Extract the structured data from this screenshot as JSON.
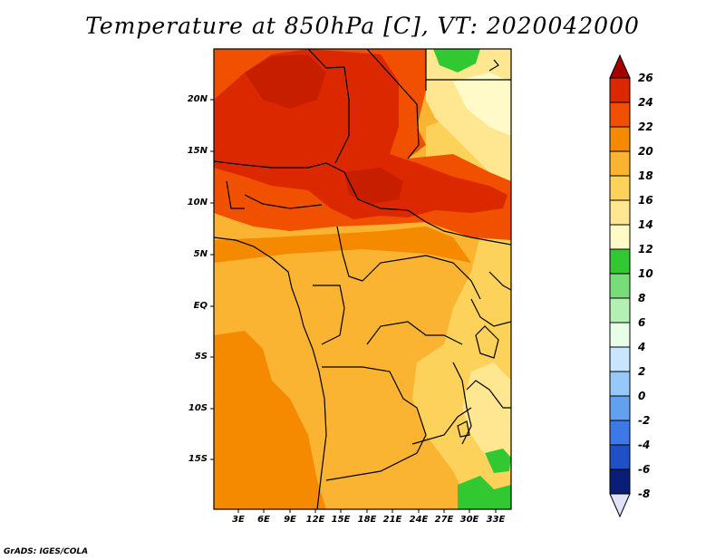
{
  "title": "Temperature at 850hPa [C], VT: 2020042000",
  "lat_labels": [
    "20N",
    "15N",
    "10N",
    "5N",
    "EQ",
    "5S",
    "10S",
    "15S"
  ],
  "lon_labels": [
    "3E",
    "6E",
    "9E",
    "12E",
    "15E",
    "18E",
    "21E",
    "24E",
    "27E",
    "30E",
    "33E"
  ],
  "colorbar": {
    "levels": [
      "26",
      "24",
      "22",
      "20",
      "18",
      "16",
      "14",
      "12",
      "10",
      "8",
      "6",
      "4",
      "2",
      "0",
      "-2",
      "-4",
      "-6",
      "-8"
    ],
    "colors": [
      "#a50000",
      "#dc2800",
      "#f05000",
      "#f58a00",
      "#fab432",
      "#fcd25a",
      "#ffe690",
      "#fffac8",
      "#32c832",
      "#78dc78",
      "#b4f0b4",
      "#e6ffe6",
      "#c8e6ff",
      "#96c8fa",
      "#64a0f0",
      "#3c78e6",
      "#1e50c8",
      "#0a1e78",
      "#e1e1fa"
    ]
  },
  "credit": "GrADS: IGES/COLA"
}
